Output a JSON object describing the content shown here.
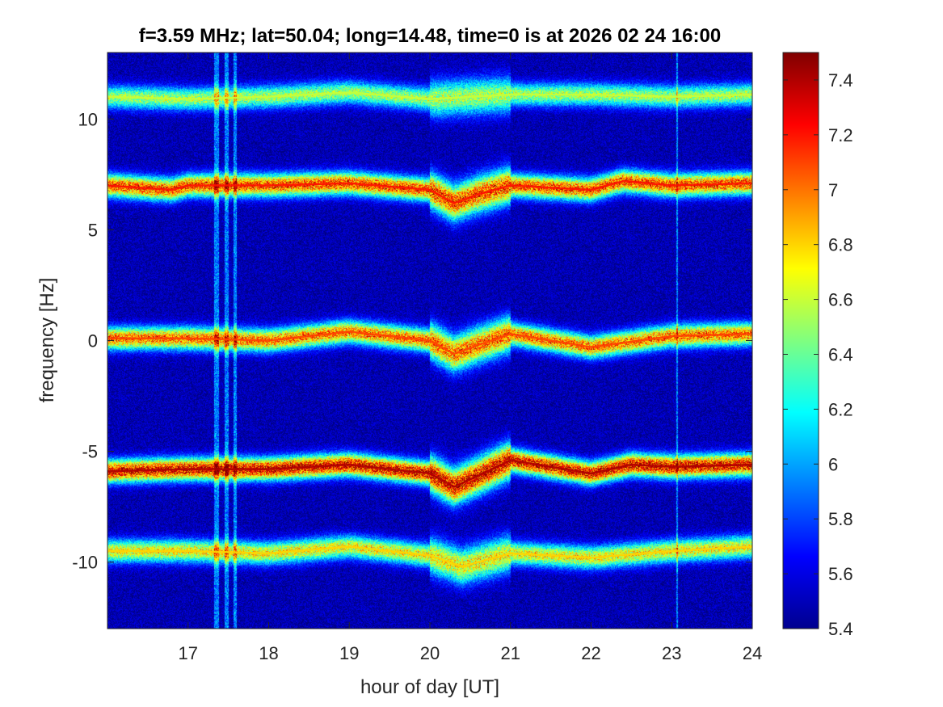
{
  "chart_data": {
    "type": "heatmap",
    "title": "f=3.59 MHz;  lat=50.04; long=14.48, time=0 is at 2026 02 24 16:00",
    "xlabel": "hour of day [UT]",
    "ylabel": "frequency [Hz]",
    "xlim": [
      16,
      24
    ],
    "ylim": [
      -13,
      13
    ],
    "x_ticks": [
      17,
      18,
      19,
      20,
      21,
      22,
      23,
      24
    ],
    "y_ticks": [
      -10,
      -5,
      0,
      5,
      10
    ],
    "colorbar": {
      "colormap": "jet",
      "range": [
        5.4,
        7.5
      ],
      "ticks": [
        5.4,
        5.6,
        5.8,
        6,
        6.2,
        6.4,
        6.6,
        6.8,
        7,
        7.2,
        7.4
      ]
    },
    "background_level": 5.5,
    "series": [
      {
        "center_hz": [
          [
            16.0,
            11.0
          ],
          [
            17.0,
            10.9
          ],
          [
            18.0,
            11.0
          ],
          [
            19.0,
            11.2
          ],
          [
            20.0,
            10.9
          ],
          [
            21.0,
            11.1
          ],
          [
            22.0,
            11.1
          ],
          [
            23.0,
            11.0
          ],
          [
            24.0,
            11.1
          ]
        ],
        "peak_level": 6.6
      },
      {
        "center_hz": [
          [
            16.0,
            7.0
          ],
          [
            16.8,
            6.8
          ],
          [
            17.0,
            7.0
          ],
          [
            18.0,
            7.0
          ],
          [
            19.0,
            7.1
          ],
          [
            20.0,
            6.8
          ],
          [
            20.3,
            6.2
          ],
          [
            20.6,
            6.6
          ],
          [
            21.0,
            7.0
          ],
          [
            22.0,
            6.8
          ],
          [
            22.4,
            7.2
          ],
          [
            23.0,
            7.0
          ],
          [
            24.0,
            7.1
          ]
        ],
        "peak_level": 7.2
      },
      {
        "center_hz": [
          [
            16.0,
            0.1
          ],
          [
            17.0,
            0.1
          ],
          [
            18.0,
            0.0
          ],
          [
            19.0,
            0.4
          ],
          [
            20.0,
            0.0
          ],
          [
            20.3,
            -0.6
          ],
          [
            20.6,
            -0.2
          ],
          [
            21.0,
            0.3
          ],
          [
            22.0,
            -0.3
          ],
          [
            23.0,
            0.2
          ],
          [
            24.0,
            0.3
          ]
        ],
        "peak_level": 7.1
      },
      {
        "center_hz": [
          [
            16.0,
            -5.9
          ],
          [
            17.0,
            -5.8
          ],
          [
            18.0,
            -5.8
          ],
          [
            19.0,
            -5.6
          ],
          [
            20.0,
            -6.0
          ],
          [
            20.3,
            -6.6
          ],
          [
            20.6,
            -6.1
          ],
          [
            21.0,
            -5.4
          ],
          [
            22.0,
            -6.0
          ],
          [
            22.5,
            -5.6
          ],
          [
            23.0,
            -5.7
          ],
          [
            24.0,
            -5.6
          ]
        ],
        "peak_level": 7.4
      },
      {
        "center_hz": [
          [
            16.0,
            -9.5
          ],
          [
            17.0,
            -9.5
          ],
          [
            18.0,
            -9.6
          ],
          [
            19.0,
            -9.3
          ],
          [
            20.0,
            -9.7
          ],
          [
            20.4,
            -10.2
          ],
          [
            21.0,
            -9.6
          ],
          [
            22.0,
            -9.8
          ],
          [
            23.0,
            -9.5
          ],
          [
            24.0,
            -9.3
          ]
        ],
        "peak_level": 6.8
      }
    ],
    "vertical_artifacts": [
      {
        "hour": 17.35,
        "width_h": 0.06
      },
      {
        "hour": 17.48,
        "width_h": 0.05
      },
      {
        "hour": 17.58,
        "width_h": 0.04
      },
      {
        "hour": 23.07,
        "width_h": 0.02
      }
    ]
  }
}
